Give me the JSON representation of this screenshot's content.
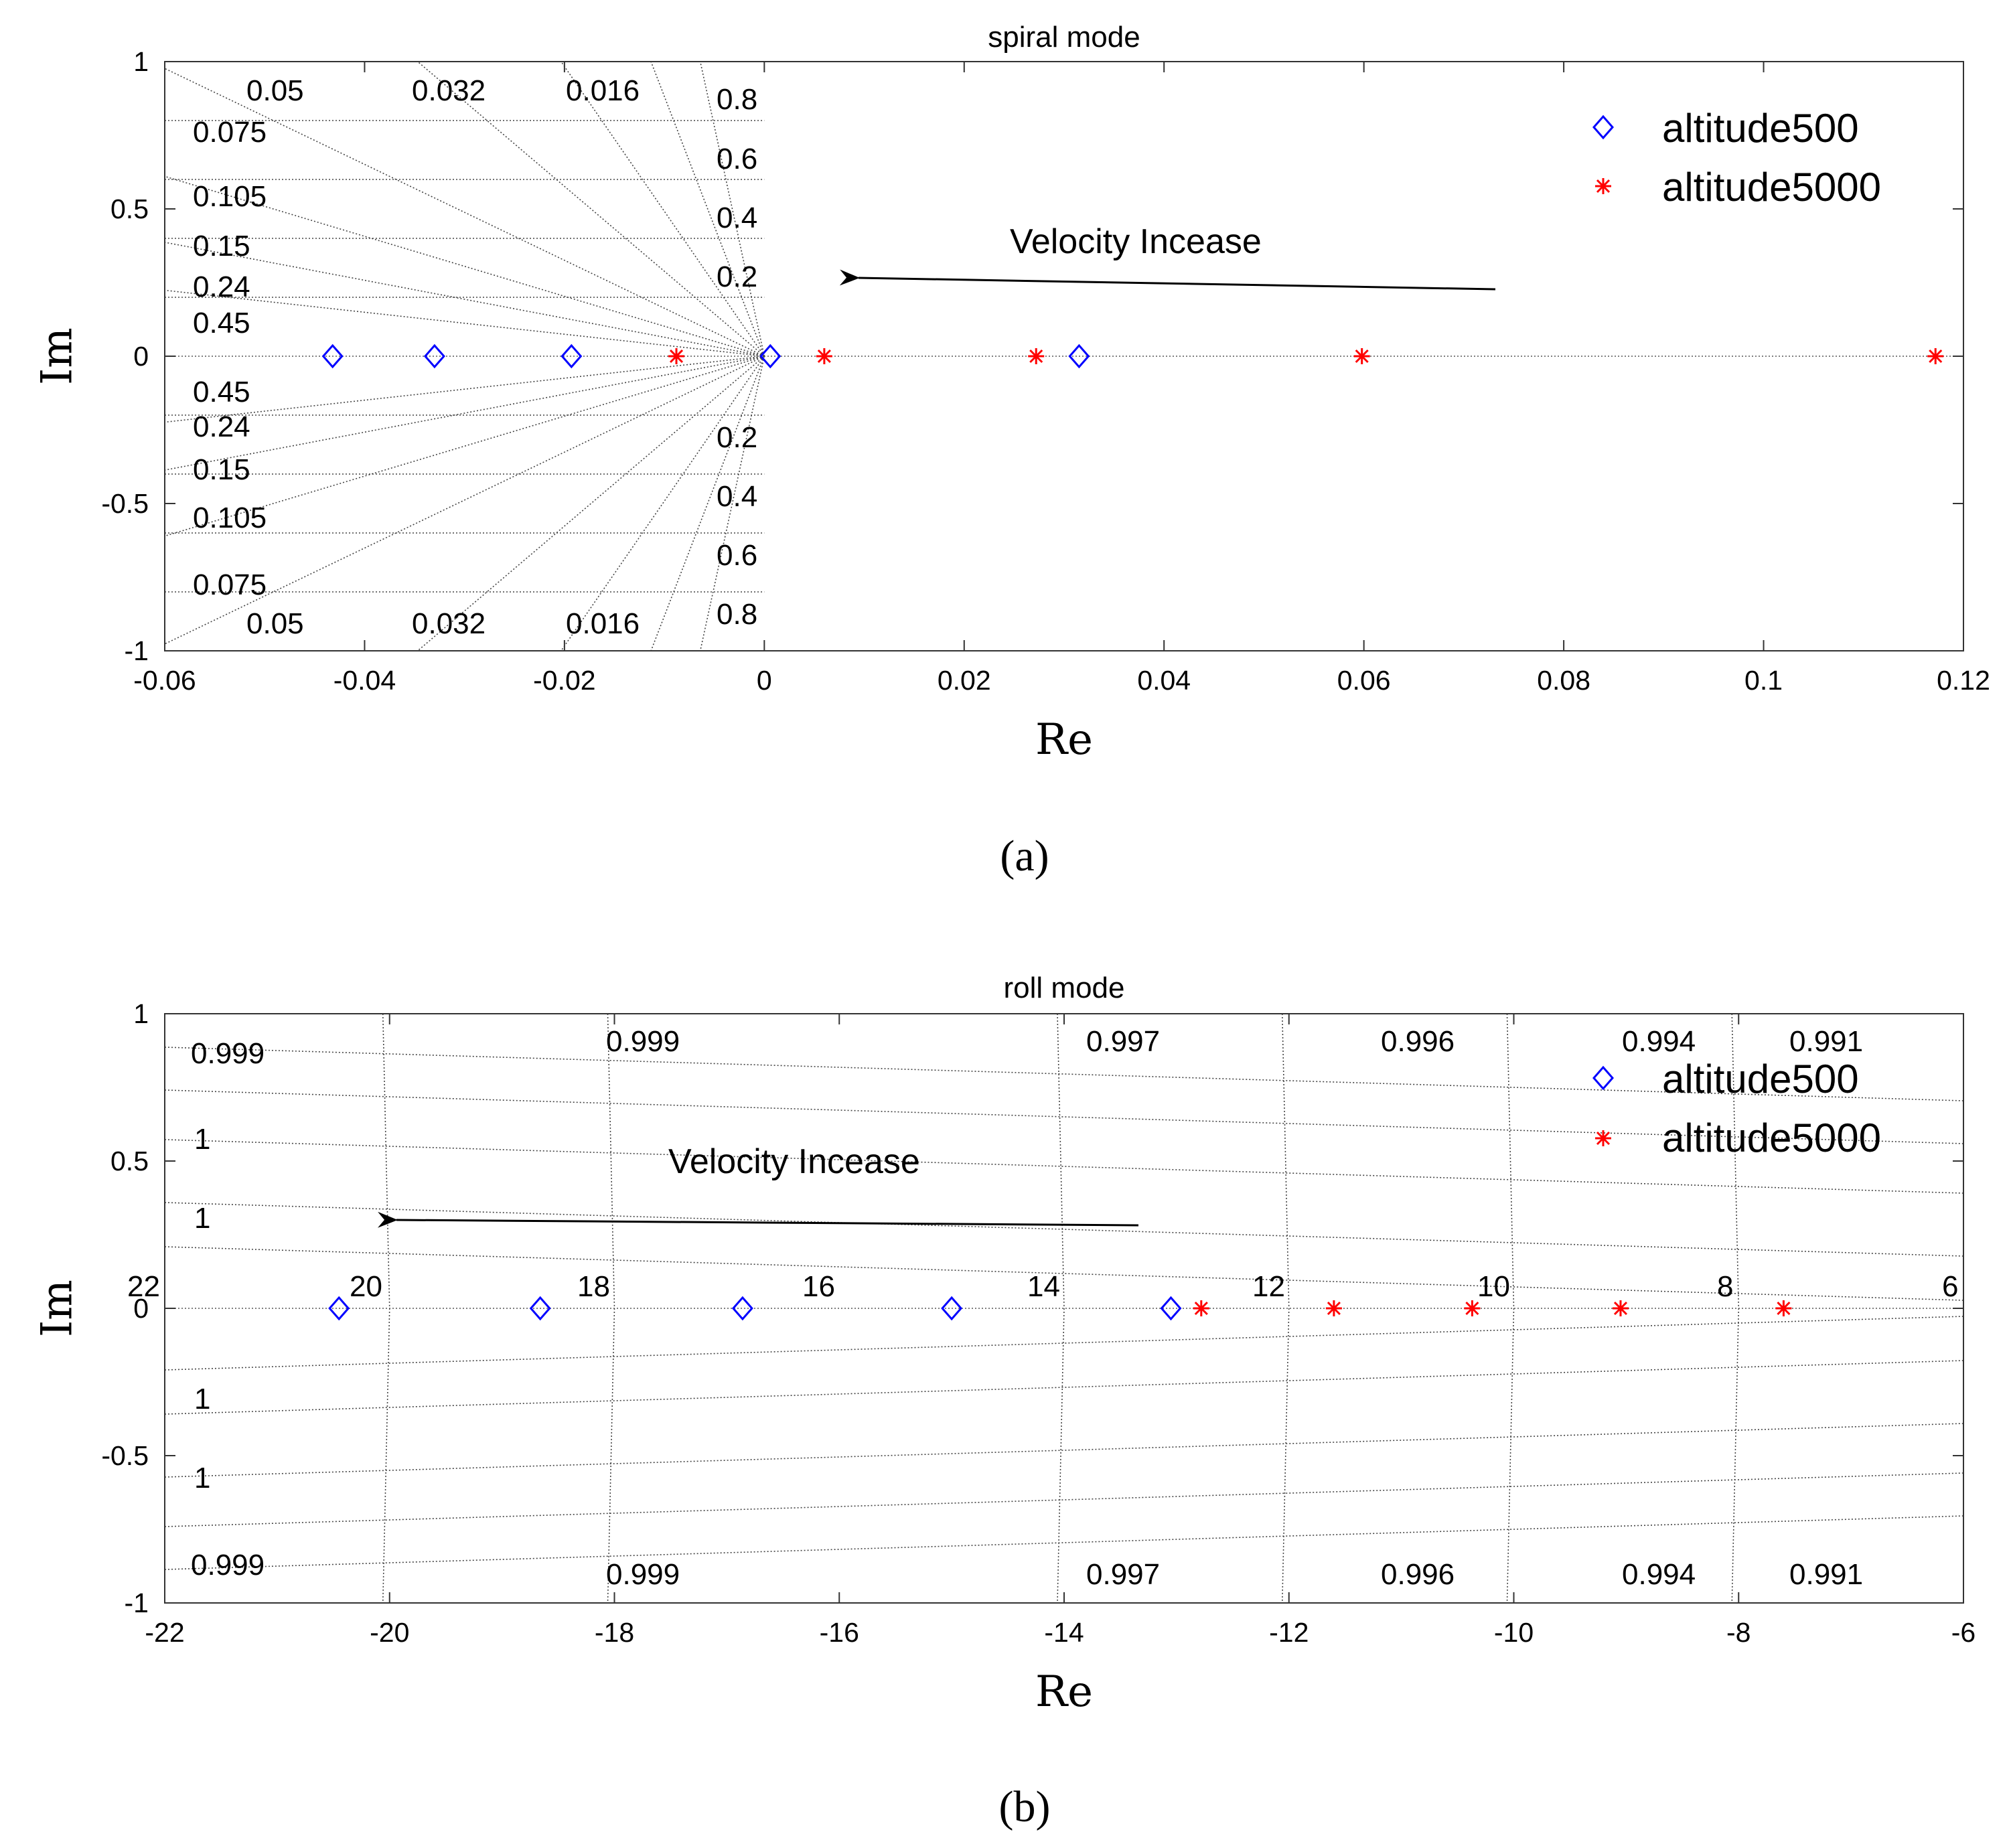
{
  "chart_data": [
    {
      "type": "scatter",
      "panel": "a",
      "title": "spiral mode",
      "xlabel": "Re",
      "ylabel": "Im",
      "xlim": [
        -0.06,
        0.12
      ],
      "ylim": [
        -1,
        1
      ],
      "xticks": [
        -0.06,
        -0.04,
        -0.02,
        0,
        0.02,
        0.04,
        0.06,
        0.08,
        0.1,
        0.12
      ],
      "xtick_labels": [
        "-0.06",
        "-0.04",
        "-0.02",
        "0",
        "0.02",
        "0.04",
        "0.06",
        "0.08",
        "0.1",
        "0.12"
      ],
      "yticks": [
        -1,
        -0.5,
        0,
        0.5,
        1
      ],
      "ytick_labels": [
        "-1",
        "-0.5",
        "0",
        "0.5",
        "1"
      ],
      "series": [
        {
          "name": "altitude500",
          "marker": "diamond",
          "color": "#0000ff",
          "x": [
            -0.0432,
            -0.033,
            -0.0193,
            0.0006,
            0.0315
          ],
          "y": [
            0,
            0,
            0,
            0,
            0
          ]
        },
        {
          "name": "altitude5000",
          "marker": "asterisk",
          "color": "#ff0000",
          "x": [
            -0.0088,
            0.006,
            0.0272,
            0.0598,
            0.1172
          ],
          "y": [
            0,
            0,
            0,
            0,
            0
          ]
        }
      ],
      "damping_labels": [
        "0.05",
        "0.032",
        "0.016",
        "0.075",
        "0.105",
        "0.15",
        "0.24",
        "0.45"
      ],
      "frequency_labels": [
        "0.8",
        "0.6",
        "0.4",
        "0.2"
      ],
      "annotation": "Velocity Incease",
      "legend": "top-right",
      "caption": "(a)"
    },
    {
      "type": "scatter",
      "panel": "b",
      "title": "roll mode",
      "xlabel": "Re",
      "ylabel": "Im",
      "xlim": [
        -22,
        -6
      ],
      "ylim": [
        -1,
        1
      ],
      "xticks": [
        -22,
        -20,
        -18,
        -16,
        -14,
        -12,
        -10,
        -8,
        -6
      ],
      "xtick_labels": [
        "-22",
        "-20",
        "-18",
        "-16",
        "-14",
        "-12",
        "-10",
        "-8",
        "-6"
      ],
      "yticks": [
        -1,
        -0.5,
        0,
        0.5,
        1
      ],
      "ytick_labels": [
        "-1",
        "-0.5",
        "0",
        "0.5",
        "1"
      ],
      "series": [
        {
          "name": "altitude500",
          "marker": "diamond",
          "color": "#0000ff",
          "x": [
            -20.45,
            -18.66,
            -16.86,
            -15.0,
            -13.05
          ],
          "y": [
            0,
            0,
            0,
            0,
            0
          ]
        },
        {
          "name": "altitude5000",
          "marker": "asterisk",
          "color": "#ff0000",
          "x": [
            -12.78,
            -11.6,
            -10.37,
            -9.05,
            -7.6
          ],
          "y": [
            0,
            0,
            0,
            0,
            0
          ]
        }
      ],
      "damping_labels": [
        "0.999",
        "0.999",
        "0.997",
        "0.996",
        "0.994",
        "0.991",
        "1",
        "1"
      ],
      "frequency_labels": [
        "22",
        "20",
        "18",
        "16",
        "14",
        "12",
        "10",
        "8",
        "6"
      ],
      "annotation": "Velocity Incease",
      "legend": "top-right",
      "caption": "(b)"
    }
  ]
}
